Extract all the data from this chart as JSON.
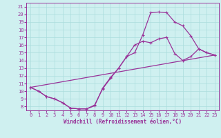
{
  "xlabel": "Windchill (Refroidissement éolien,°C)",
  "xlim": [
    -0.5,
    23.5
  ],
  "ylim": [
    7.5,
    21.5
  ],
  "xticks": [
    0,
    1,
    2,
    3,
    4,
    5,
    6,
    7,
    8,
    9,
    10,
    11,
    12,
    13,
    14,
    15,
    16,
    17,
    18,
    19,
    20,
    21,
    22,
    23
  ],
  "yticks": [
    8,
    9,
    10,
    11,
    12,
    13,
    14,
    15,
    16,
    17,
    18,
    19,
    20,
    21
  ],
  "bg_color": "#cff0f0",
  "grid_color": "#aadddd",
  "line_color": "#993399",
  "curve1_x": [
    0,
    1,
    2,
    3,
    4,
    5,
    6,
    7,
    8,
    9,
    10,
    11,
    12,
    13,
    14,
    15,
    16,
    17,
    18,
    19,
    20,
    21,
    22,
    23
  ],
  "curve1_y": [
    10.5,
    10.0,
    9.3,
    9.0,
    8.5,
    7.8,
    7.7,
    7.7,
    8.1,
    10.4,
    11.8,
    13.0,
    14.5,
    15.0,
    17.3,
    20.2,
    20.3,
    20.2,
    19.0,
    18.5,
    17.2,
    15.5,
    15.0,
    14.7
  ],
  "curve2_x": [
    0,
    1,
    2,
    3,
    4,
    5,
    6,
    7,
    8,
    9,
    10,
    11,
    12,
    13,
    14,
    15,
    16,
    17,
    18,
    19,
    20,
    21,
    22,
    23
  ],
  "curve2_y": [
    10.5,
    10.0,
    9.3,
    9.0,
    8.5,
    7.8,
    7.7,
    7.7,
    8.2,
    10.3,
    11.7,
    13.0,
    14.5,
    16.0,
    16.5,
    16.3,
    16.8,
    17.0,
    14.9,
    14.0,
    14.5,
    15.5,
    15.0,
    14.7
  ],
  "curve3_x": [
    0,
    23
  ],
  "curve3_y": [
    10.5,
    14.7
  ],
  "markersize": 3,
  "linewidth": 0.9,
  "tick_fontsize": 5,
  "xlabel_fontsize": 5.5
}
